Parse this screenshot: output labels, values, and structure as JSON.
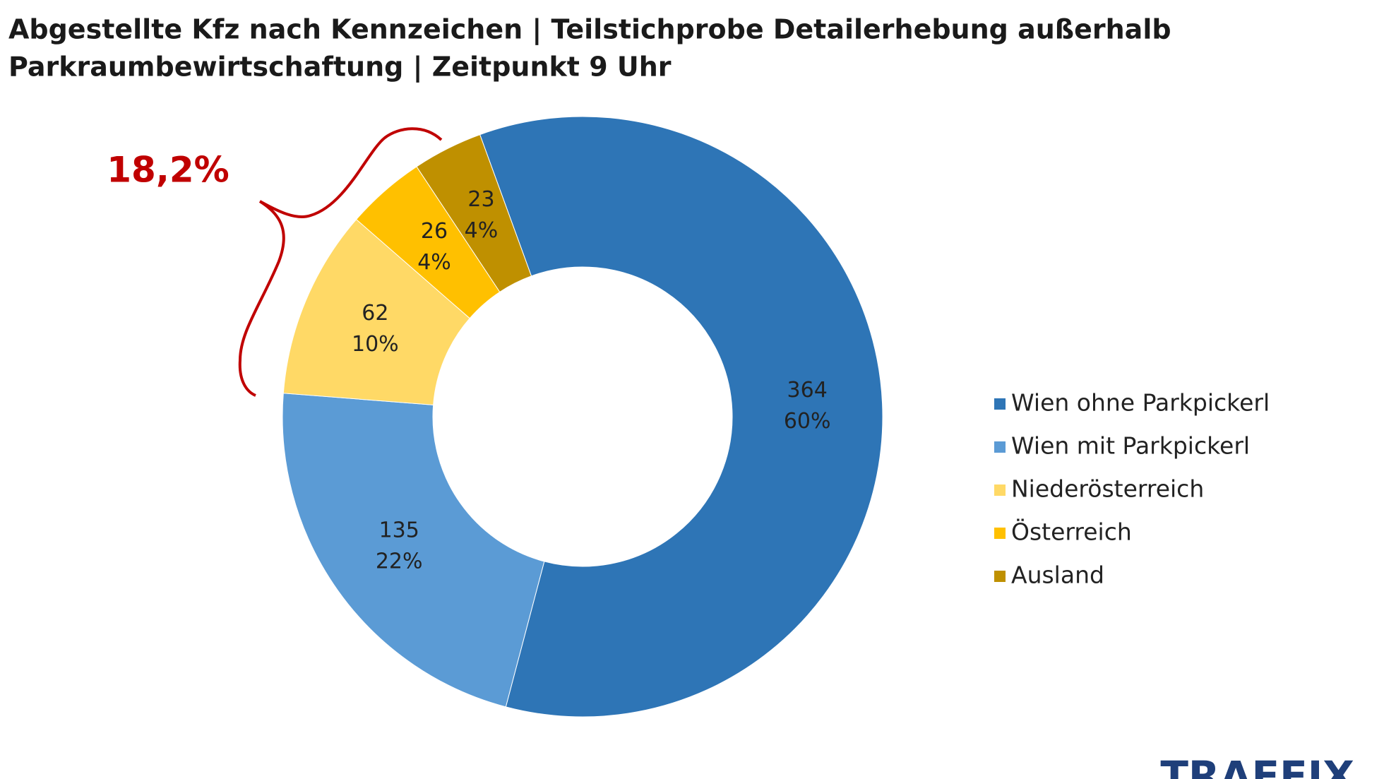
{
  "chart_data": {
    "type": "donut",
    "title": "Abgestellte Kfz nach Kennzeichen | Teilstichprobe Detailerhebung außerhalb",
    "subtitle": "Parkraumbewirtschaftung | Zeitpunkt 9 Uhr",
    "categories": [
      "Wien ohne Parkpickerl",
      "Wien mit Parkpickerl",
      "Niederösterreich",
      "Österreich",
      "Ausland"
    ],
    "values": [
      364,
      135,
      62,
      26,
      23
    ],
    "percent_labels": [
      "60%",
      "22%",
      "10%",
      "4%",
      "4%"
    ],
    "colors": [
      "#2e75b6",
      "#5b9bd5",
      "#ffd966",
      "#ffc000",
      "#bf9000"
    ],
    "annotation": "18,2%",
    "legend": "right",
    "logo": "TRAFFIX"
  }
}
